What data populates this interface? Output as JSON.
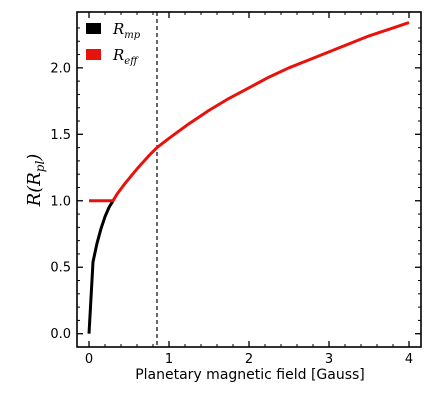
{
  "chart_data": {
    "type": "line",
    "xlabel": "Planetary magnetic field [Gauss]",
    "ylabel": {
      "main": "R(R",
      "sub": "pl",
      "close": ")"
    },
    "xlim": [
      -0.15,
      4.15
    ],
    "ylim": [
      -0.1,
      2.42
    ],
    "xticks": [
      0,
      1,
      2,
      3,
      4
    ],
    "xtick_labels": [
      "0",
      "1",
      "2",
      "3",
      "4"
    ],
    "yticks": [
      0.0,
      0.5,
      1.0,
      1.5,
      2.0
    ],
    "ytick_labels": [
      "0.0",
      "0.5",
      "1.0",
      "1.5",
      "2.0"
    ],
    "minor_xticks": [
      0.2,
      0.4,
      0.6,
      0.8,
      1.2,
      1.4,
      1.6,
      1.8,
      2.2,
      2.4,
      2.6,
      2.8,
      3.2,
      3.4,
      3.6,
      3.8
    ],
    "minor_yticks": [
      0.1,
      0.2,
      0.3,
      0.4,
      0.6,
      0.7,
      0.8,
      0.9,
      1.1,
      1.2,
      1.3,
      1.4,
      1.6,
      1.7,
      1.8,
      1.9,
      2.1,
      2.2,
      2.3
    ],
    "vline_x": 0.85,
    "legend_position": "upper-left",
    "series": [
      {
        "name": "R_mp",
        "legend_main": "R",
        "legend_sub": "mp",
        "color": "#000000",
        "x": [
          0.0,
          0.05,
          0.1,
          0.15,
          0.2,
          0.25,
          0.3
        ],
        "y": [
          0.0,
          0.54,
          0.68,
          0.79,
          0.88,
          0.95,
          1.0
        ]
      },
      {
        "name": "R_eff",
        "legend_main": "R",
        "legend_sub": "eff",
        "color": "#e8120c",
        "x": [
          0.0,
          0.3,
          0.35,
          0.45,
          0.6,
          0.75,
          0.85,
          1.0,
          1.25,
          1.5,
          1.75,
          2.0,
          2.25,
          2.5,
          2.75,
          3.0,
          3.25,
          3.5,
          3.75,
          4.0
        ],
        "y": [
          1.0,
          1.0,
          1.05,
          1.13,
          1.24,
          1.34,
          1.4,
          1.47,
          1.58,
          1.68,
          1.77,
          1.85,
          1.93,
          2.0,
          2.06,
          2.12,
          2.18,
          2.24,
          2.29,
          2.34
        ]
      }
    ]
  }
}
